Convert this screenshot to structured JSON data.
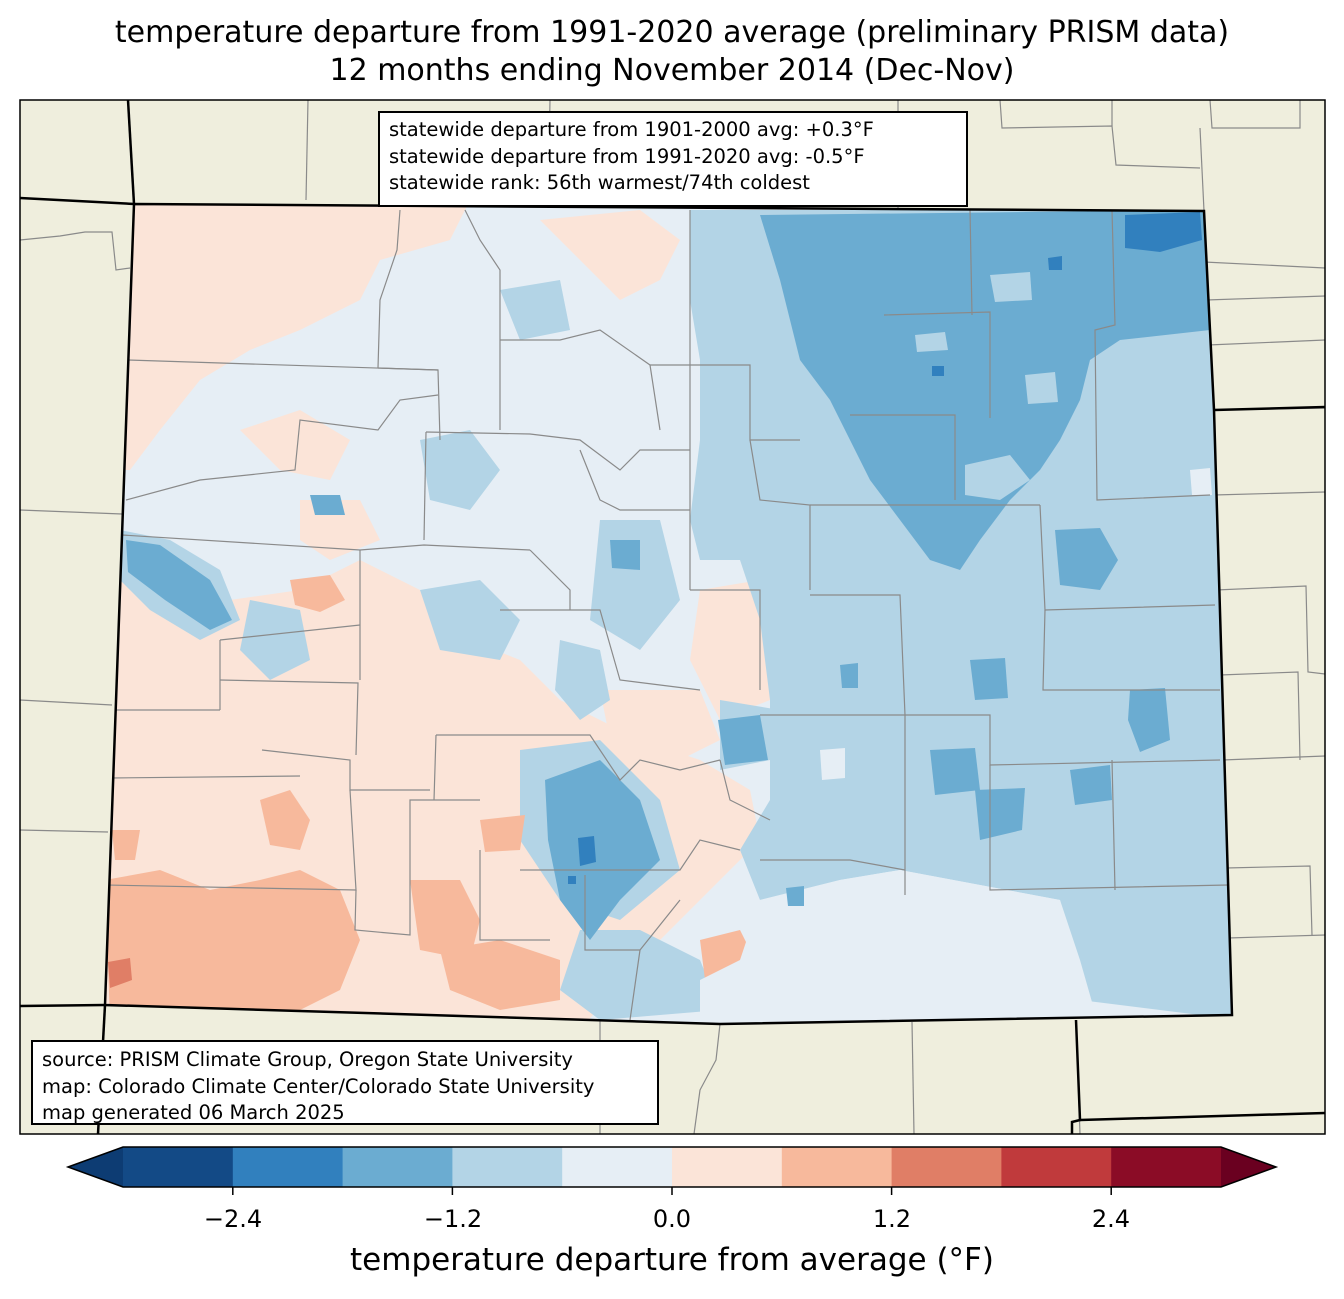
{
  "title_line1": "temperature departure from 1991-2020 average (preliminary PRISM data)",
  "title_line2": "12 months ending November 2014 (Dec-Nov)",
  "stats": {
    "line1": "statewide departure from 1901-2000 avg: +0.3°F",
    "line2": "statewide departure from 1991-2020 avg: -0.5°F",
    "line3": "statewide rank: 56th warmest/74th coldest"
  },
  "credits": {
    "line1": "source: PRISM Climate Group, Oregon State University",
    "line2": "map: Colorado Climate Center/Colorado State University",
    "line3": "map generated 06 March 2025"
  },
  "colorbar": {
    "label": "temperature departure from average (°F)",
    "ticks": [
      "−2.4",
      "−1.2",
      "0.0",
      "1.2",
      "2.4"
    ],
    "bins": [
      -3.0,
      -2.4,
      -1.8,
      -1.2,
      -0.6,
      0.0,
      0.6,
      1.2,
      1.8,
      2.4,
      3.0
    ],
    "colors": [
      "#0d3c73",
      "#134a86",
      "#3180be",
      "#6bacd1",
      "#b3d4e6",
      "#e6eef5",
      "#fbe4d8",
      "#f7b99c",
      "#e07e66",
      "#c03a3c",
      "#8b0c26",
      "#6a0020"
    ]
  },
  "map_colors": {
    "land_outside": "#efeedd",
    "state_border": "#000000",
    "county_lines": "#8a8a8a"
  }
}
